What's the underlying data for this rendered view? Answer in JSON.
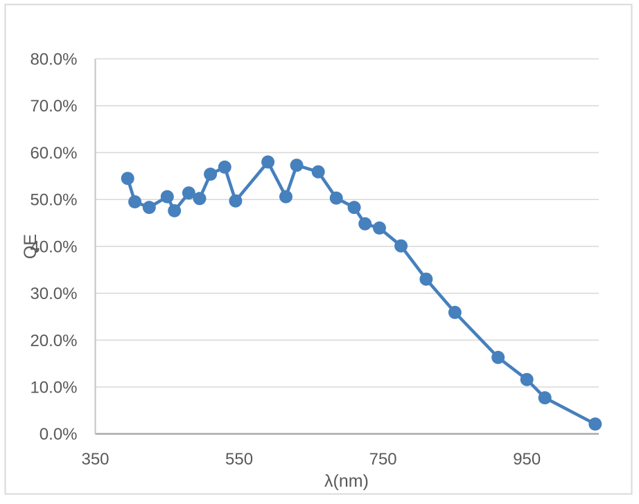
{
  "chart": {
    "frame": {
      "border_color": "#d9d9d9",
      "background_color": "#ffffff"
    },
    "styles": {
      "gridline_color": "#d9d9d9",
      "baseline_color": "#a6a6a6",
      "axis_line_color": "#c3c3c3",
      "tick_text_color": "#595959",
      "series_color": "#4680bd"
    }
  },
  "chart_data": {
    "type": "line",
    "title": "",
    "xlabel": "λ(nm)",
    "ylabel": "QE",
    "xlim": [
      350,
      1050
    ],
    "ylim": [
      0,
      80
    ],
    "grid": "horizontal-only",
    "legend": "none",
    "x_ticks": [
      350,
      550,
      750,
      950
    ],
    "x_tick_labels": [
      "350",
      "550",
      "750",
      "950"
    ],
    "y_ticks": [
      0,
      10,
      20,
      30,
      40,
      50,
      60,
      70,
      80
    ],
    "y_tick_labels": [
      "0.0%",
      "10.0%",
      "20.0%",
      "30.0%",
      "40.0%",
      "50.0%",
      "60.0%",
      "70.0%",
      "80.0%"
    ],
    "series": [
      {
        "name": "QE",
        "color": "#4680bd",
        "marker": "circle",
        "x": [
          395,
          405,
          425,
          450,
          460,
          480,
          495,
          510,
          530,
          545,
          590,
          615,
          630,
          660,
          685,
          710,
          725,
          745,
          775,
          810,
          850,
          910,
          950,
          975,
          1045
        ],
        "y": [
          54.5,
          49.5,
          48.3,
          50.6,
          47.6,
          51.4,
          50.2,
          55.4,
          56.9,
          49.7,
          58.0,
          50.6,
          57.3,
          55.9,
          50.3,
          48.3,
          44.8,
          43.9,
          40.1,
          33.0,
          25.9,
          16.3,
          11.6,
          7.7,
          2.1
        ]
      }
    ]
  }
}
